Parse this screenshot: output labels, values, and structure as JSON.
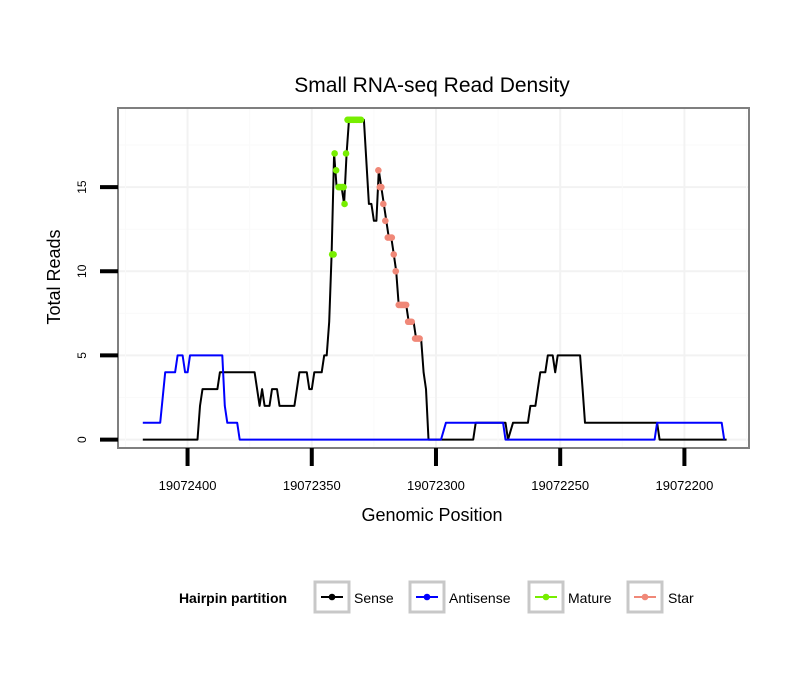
{
  "chart_data": {
    "type": "line",
    "title": "Small RNA-seq Read Density",
    "xlabel": "Genomic Position",
    "ylabel": "Total Reads",
    "xlim": [
      19072428,
      19072174
    ],
    "x_reversed": true,
    "ylim": [
      -0.5,
      19.7
    ],
    "x_ticks": [
      19072400,
      19072350,
      19072300,
      19072250,
      19072200
    ],
    "y_ticks": [
      0,
      5,
      10,
      15
    ],
    "grid": true,
    "legend": {
      "title": "Hairpin partition",
      "position": "bottom",
      "entries": [
        {
          "label": "Sense",
          "color": "#000000"
        },
        {
          "label": "Antisense",
          "color": "#0000ff"
        },
        {
          "label": "Mature",
          "color": "#77ee00"
        },
        {
          "label": "Star",
          "color": "#f08878"
        }
      ]
    },
    "series": [
      {
        "name": "Sense",
        "color": "#000000",
        "points": [
          [
            19072418,
            0
          ],
          [
            19072396,
            0
          ],
          [
            19072395,
            2
          ],
          [
            19072394,
            3
          ],
          [
            19072388,
            3
          ],
          [
            19072387,
            4
          ],
          [
            19072373,
            4
          ],
          [
            19072371,
            2
          ],
          [
            19072370,
            3
          ],
          [
            19072369,
            2
          ],
          [
            19072367,
            2
          ],
          [
            19072366,
            3
          ],
          [
            19072364,
            3
          ],
          [
            19072363,
            2
          ],
          [
            19072357,
            2
          ],
          [
            19072355,
            4
          ],
          [
            19072352,
            4
          ],
          [
            19072351,
            3
          ],
          [
            19072350,
            3
          ],
          [
            19072349,
            4
          ],
          [
            19072346,
            4
          ],
          [
            19072345,
            5
          ],
          [
            19072344,
            5
          ],
          [
            19072343,
            7
          ],
          [
            19072342,
            11
          ],
          [
            19072341,
            17
          ],
          [
            19072340,
            15
          ],
          [
            19072338,
            15
          ],
          [
            19072337,
            14
          ],
          [
            19072336,
            17
          ],
          [
            19072335,
            19
          ],
          [
            19072329,
            19
          ],
          [
            19072327,
            14
          ],
          [
            19072326,
            14
          ],
          [
            19072325,
            13
          ],
          [
            19072324,
            13
          ],
          [
            19072323,
            16
          ],
          [
            19072322,
            15
          ],
          [
            19072321,
            14
          ],
          [
            19072320,
            13
          ],
          [
            19072319,
            12
          ],
          [
            19072318,
            12
          ],
          [
            19072317,
            11
          ],
          [
            19072316,
            10
          ],
          [
            19072315,
            8
          ],
          [
            19072312,
            8
          ],
          [
            19072311,
            7
          ],
          [
            19072309,
            7
          ],
          [
            19072308,
            6
          ],
          [
            19072306,
            6
          ],
          [
            19072305,
            4
          ],
          [
            19072304,
            3
          ],
          [
            19072303,
            0
          ],
          [
            19072285,
            0
          ],
          [
            19072284,
            1
          ],
          [
            19072272,
            1
          ],
          [
            19072271,
            0
          ],
          [
            19072269,
            1
          ],
          [
            19072263,
            1
          ],
          [
            19072262,
            2
          ],
          [
            19072260,
            2
          ],
          [
            19072259,
            3
          ],
          [
            19072258,
            4
          ],
          [
            19072256,
            4
          ],
          [
            19072255,
            5
          ],
          [
            19072253,
            5
          ],
          [
            19072252,
            4
          ],
          [
            19072251,
            5
          ],
          [
            19072242,
            5
          ],
          [
            19072241,
            3
          ],
          [
            19072240,
            1
          ],
          [
            19072211,
            1
          ],
          [
            19072210,
            0
          ],
          [
            19072183,
            0
          ]
        ]
      },
      {
        "name": "Antisense",
        "color": "#0000ff",
        "points": [
          [
            19072418,
            1
          ],
          [
            19072411,
            1
          ],
          [
            19072409,
            4
          ],
          [
            19072405,
            4
          ],
          [
            19072404,
            5
          ],
          [
            19072402,
            5
          ],
          [
            19072401,
            4
          ],
          [
            19072400,
            4
          ],
          [
            19072399,
            5
          ],
          [
            19072386,
            5
          ],
          [
            19072385,
            2
          ],
          [
            19072384,
            1
          ],
          [
            19072380,
            1
          ],
          [
            19072379,
            0
          ],
          [
            19072298,
            0
          ],
          [
            19072296,
            1
          ],
          [
            19072273,
            1
          ],
          [
            19072272,
            0
          ],
          [
            19072212,
            0
          ],
          [
            19072211,
            1
          ],
          [
            19072185,
            1
          ],
          [
            19072184,
            0
          ]
        ]
      }
    ],
    "mature_points": [
      [
        19072341.8,
        11
      ],
      [
        19072341.2,
        11
      ],
      [
        19072340.8,
        17
      ],
      [
        19072340.2,
        16
      ],
      [
        19072339.2,
        15
      ],
      [
        19072338.6,
        15
      ],
      [
        19072337.8,
        15
      ],
      [
        19072337.2,
        15
      ],
      [
        19072336.8,
        14
      ],
      [
        19072336.2,
        17
      ],
      [
        19072335.6,
        19
      ],
      [
        19072335.0,
        19
      ],
      [
        19072334.4,
        19
      ],
      [
        19072333.8,
        19
      ],
      [
        19072333.2,
        19
      ],
      [
        19072332.6,
        19
      ],
      [
        19072332.0,
        19
      ],
      [
        19072331.4,
        19
      ],
      [
        19072330.8,
        19
      ],
      [
        19072330.2,
        19
      ]
    ],
    "star_points": [
      [
        19072323.2,
        16
      ],
      [
        19072322.6,
        15
      ],
      [
        19072322.0,
        15
      ],
      [
        19072321.2,
        14
      ],
      [
        19072320.4,
        13
      ],
      [
        19072319.4,
        12
      ],
      [
        19072318.6,
        12
      ],
      [
        19072317.8,
        12
      ],
      [
        19072317.0,
        11
      ],
      [
        19072316.2,
        10
      ],
      [
        19072315.0,
        8
      ],
      [
        19072314.4,
        8
      ],
      [
        19072313.8,
        8
      ],
      [
        19072313.2,
        8
      ],
      [
        19072312.6,
        8
      ],
      [
        19072312.0,
        8
      ],
      [
        19072311.2,
        7
      ],
      [
        19072310.4,
        7
      ],
      [
        19072309.8,
        7
      ],
      [
        19072308.4,
        6
      ],
      [
        19072307.8,
        6
      ],
      [
        19072307.2,
        6
      ],
      [
        19072306.6,
        6
      ]
    ]
  }
}
